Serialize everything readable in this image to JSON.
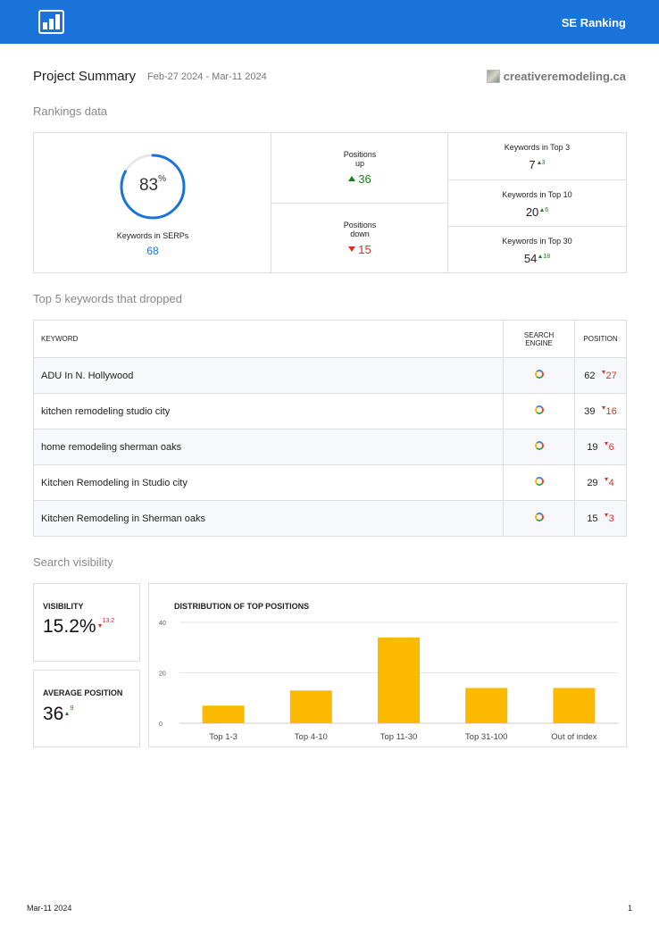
{
  "header": {
    "brand": "SE Ranking",
    "logo_icon": "bar-chart-icon"
  },
  "summary": {
    "title": "Project Summary",
    "date_range": "Feb-27 2024 - Mar-11 2024",
    "site": "creativeremodeling.ca"
  },
  "rankings": {
    "section_title": "Rankings data",
    "serp_percent": "83",
    "percent_sign": "%",
    "serp_fraction": 0.83,
    "serp_label": "Keywords in SERPs",
    "serp_count": "68",
    "positions_up_label_1": "Positions",
    "positions_up_label_2": "up",
    "positions_up_value": "36",
    "positions_down_label_1": "Positions",
    "positions_down_label_2": "down",
    "positions_down_value": "15",
    "top3_label": "Keywords in Top 3",
    "top3_value": "7",
    "top3_delta": "3",
    "top10_label": "Keywords in Top 10",
    "top10_value": "20",
    "top10_delta": "6",
    "top30_label": "Keywords in Top 30",
    "top30_value": "54",
    "top30_delta": "18",
    "colors": {
      "up": "#1a7e1a",
      "down": "#d93025",
      "accent": "#1a73d9"
    }
  },
  "dropped": {
    "section_title": "Top 5 keywords that dropped",
    "col_keyword": "KEYWORD",
    "col_engine_1": "SEARCH",
    "col_engine_2": "ENGINE",
    "col_position": "POSITION",
    "engine_icon": "google-icon",
    "rows": [
      {
        "keyword": "ADU In N. Hollywood",
        "position": "62",
        "drop": "27"
      },
      {
        "keyword": "kitchen remodeling studio city",
        "position": "39",
        "drop": "16"
      },
      {
        "keyword": "home remodeling sherman oaks",
        "position": "19",
        "drop": "6"
      },
      {
        "keyword": "Kitchen Remodeling in Studio city",
        "position": "29",
        "drop": "4"
      },
      {
        "keyword": "Kitchen Remodeling in Sherman oaks",
        "position": "15",
        "drop": "3"
      }
    ]
  },
  "visibility": {
    "section_title": "Search visibility",
    "visibility_label": "VISIBILITY",
    "visibility_value": "15.2%",
    "visibility_delta": "13.2",
    "avg_label": "AVERAGE POSITION",
    "avg_value": "36",
    "avg_delta": "9"
  },
  "chart_data": {
    "type": "bar",
    "title": "DISTRIBUTION OF TOP POSITIONS",
    "categories": [
      "Top 1-3",
      "Top 4-10",
      "Top 11-30",
      "Top 31-100",
      "Out of index"
    ],
    "values": [
      7,
      13,
      34,
      14,
      14
    ],
    "ylim": [
      0,
      40
    ],
    "yticks": [
      "0",
      "20",
      "40"
    ],
    "grid": true,
    "bar_color": "#fbba00"
  },
  "footer": {
    "date": "Mar-11 2024",
    "page": "1"
  }
}
